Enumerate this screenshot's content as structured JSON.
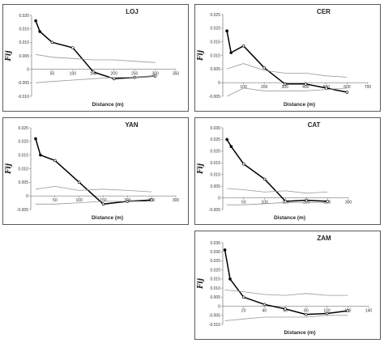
{
  "chart_data": [
    {
      "id": "loj",
      "type": "line",
      "title": "LOJ",
      "xlabel": "Distance (m)",
      "ylabel": "Fij",
      "xlim": [
        0,
        350
      ],
      "ylim": [
        -0.01,
        0.02
      ],
      "x_ticks": [
        50,
        100,
        150,
        200,
        250,
        300,
        350
      ],
      "y_ticks": [
        -0.01,
        -0.005,
        0,
        0.005,
        0.01,
        0.015,
        0.02
      ],
      "y_tick_labels": [
        "-0.010",
        "-0.005",
        "0",
        "0.005",
        "0.010",
        "0.015",
        "0.020"
      ],
      "grid": false,
      "legend": "none",
      "series": [
        {
          "role": "observed",
          "color": "#000000",
          "x": [
            10,
            20,
            50,
            100,
            150,
            200,
            250,
            300
          ],
          "y": [
            0.018,
            0.014,
            0.01,
            0.008,
            -0.001,
            -0.0035,
            -0.003,
            -0.0025
          ]
        },
        {
          "role": "upper",
          "color": "#999999",
          "x": [
            10,
            50,
            100,
            150,
            200,
            250,
            300
          ],
          "y": [
            0.0055,
            0.0045,
            0.004,
            0.0035,
            0.0035,
            0.003,
            0.0025
          ]
        },
        {
          "role": "lower",
          "color": "#999999",
          "x": [
            10,
            50,
            100,
            150,
            200,
            250,
            300
          ],
          "y": [
            -0.005,
            -0.0045,
            -0.004,
            -0.0035,
            -0.003,
            -0.003,
            -0.0025
          ]
        }
      ]
    },
    {
      "id": "cer",
      "type": "line",
      "title": "CER",
      "xlabel": "Distance (m)",
      "ylabel": "Fij",
      "xlim": [
        0,
        700
      ],
      "ylim": [
        -0.005,
        0.025
      ],
      "x_ticks": [
        100,
        200,
        300,
        400,
        500,
        600,
        700
      ],
      "y_ticks": [
        -0.005,
        0,
        0.005,
        0.01,
        0.015,
        0.02,
        0.025
      ],
      "y_tick_labels": [
        "-0.005",
        "0",
        "0.005",
        "0.010",
        "0.015",
        "0.020",
        "0.025"
      ],
      "grid": false,
      "legend": "none",
      "series": [
        {
          "role": "observed",
          "color": "#000000",
          "x": [
            20,
            40,
            100,
            200,
            300,
            400,
            500,
            600
          ],
          "y": [
            0.019,
            0.011,
            0.0135,
            0.0055,
            -0.0005,
            -0.0005,
            -0.002,
            -0.0035
          ]
        },
        {
          "role": "upper",
          "color": "#999999",
          "x": [
            20,
            100,
            200,
            300,
            400,
            500,
            600
          ],
          "y": [
            0.005,
            0.007,
            0.0045,
            0.0035,
            0.0035,
            0.0025,
            0.002
          ]
        },
        {
          "role": "lower",
          "color": "#999999",
          "x": [
            20,
            100,
            200,
            300,
            400,
            500,
            600
          ],
          "y": [
            -0.005,
            -0.002,
            -0.003,
            -0.003,
            -0.003,
            -0.0025,
            -0.002
          ]
        }
      ]
    },
    {
      "id": "yan",
      "type": "line",
      "title": "YAN",
      "xlabel": "Distance (m)",
      "ylabel": "Fij",
      "xlim": [
        0,
        300
      ],
      "ylim": [
        -0.005,
        0.025
      ],
      "x_ticks": [
        50,
        100,
        150,
        200,
        250,
        300
      ],
      "y_ticks": [
        -0.005,
        0,
        0.005,
        0.01,
        0.015,
        0.02,
        0.025
      ],
      "y_tick_labels": [
        "-0.005",
        "0",
        "0.005",
        "0.010",
        "0.015",
        "0.020",
        "0.025"
      ],
      "grid": false,
      "legend": "none",
      "series": [
        {
          "role": "observed",
          "color": "#000000",
          "x": [
            10,
            20,
            50,
            100,
            150,
            200,
            250
          ],
          "y": [
            0.021,
            0.015,
            0.013,
            0.005,
            -0.003,
            -0.002,
            -0.0015
          ]
        },
        {
          "role": "upper",
          "color": "#999999",
          "x": [
            10,
            50,
            100,
            150,
            200,
            250
          ],
          "y": [
            0.0025,
            0.0035,
            0.002,
            0.0025,
            0.002,
            0.0015
          ]
        },
        {
          "role": "lower",
          "color": "#999999",
          "x": [
            10,
            50,
            100,
            150,
            200,
            250
          ],
          "y": [
            -0.003,
            -0.003,
            -0.0025,
            -0.002,
            -0.002,
            -0.002
          ]
        }
      ]
    },
    {
      "id": "cat",
      "type": "line",
      "title": "CAT",
      "xlabel": "Distance (m)",
      "ylabel": "Fij",
      "xlim": [
        0,
        300
      ],
      "ylim": [
        -0.005,
        0.03
      ],
      "x_ticks": [
        50,
        100,
        150,
        200,
        250,
        300
      ],
      "y_ticks": [
        -0.005,
        0,
        0.005,
        0.01,
        0.015,
        0.02,
        0.025,
        0.03
      ],
      "y_tick_labels": [
        "-0.005",
        "0",
        "0.005",
        "0.010",
        "0.015",
        "0.020",
        "0.025",
        "0.030"
      ],
      "grid": false,
      "legend": "none",
      "series": [
        {
          "role": "observed",
          "color": "#000000",
          "x": [
            10,
            20,
            50,
            100,
            150,
            200,
            250
          ],
          "y": [
            0.025,
            0.022,
            0.0145,
            0.008,
            -0.0015,
            -0.001,
            -0.0015
          ]
        },
        {
          "role": "upper",
          "color": "#999999",
          "x": [
            10,
            50,
            100,
            150,
            200,
            250
          ],
          "y": [
            0.004,
            0.0035,
            0.0025,
            0.003,
            0.002,
            0.0025
          ]
        },
        {
          "role": "lower",
          "color": "#999999",
          "x": [
            10,
            50,
            100,
            150,
            200,
            250
          ],
          "y": [
            -0.003,
            -0.003,
            -0.0025,
            -0.002,
            -0.002,
            -0.002
          ]
        }
      ]
    },
    {
      "id": "zam",
      "type": "line",
      "title": "ZAM",
      "xlabel": "Distance (m)",
      "ylabel": "Fij",
      "xlim": [
        0,
        140
      ],
      "ylim": [
        -0.01,
        0.035
      ],
      "x_ticks": [
        20,
        40,
        60,
        80,
        100,
        120,
        140
      ],
      "y_ticks": [
        -0.01,
        -0.005,
        0,
        0.005,
        0.01,
        0.015,
        0.02,
        0.025,
        0.03,
        0.035
      ],
      "y_tick_labels": [
        "-0.010",
        "-0.005",
        "0",
        "0.005",
        "0.010",
        "0.015",
        "0.020",
        "0.025",
        "0.030",
        "0.035"
      ],
      "grid": false,
      "legend": "none",
      "series": [
        {
          "role": "observed",
          "color": "#000000",
          "x": [
            2,
            7,
            20,
            40,
            60,
            80,
            100,
            120
          ],
          "y": [
            0.031,
            0.015,
            0.005,
            0.001,
            -0.0015,
            -0.0045,
            -0.004,
            -0.0025
          ]
        },
        {
          "role": "upper",
          "color": "#999999",
          "x": [
            2,
            20,
            40,
            60,
            80,
            100,
            120
          ],
          "y": [
            0.009,
            0.008,
            0.0065,
            0.006,
            0.007,
            0.006,
            0.006
          ]
        },
        {
          "role": "lower",
          "color": "#999999",
          "x": [
            2,
            20,
            40,
            60,
            80,
            100,
            120
          ],
          "y": [
            -0.008,
            -0.007,
            -0.006,
            -0.006,
            -0.006,
            -0.005,
            -0.005
          ]
        }
      ]
    }
  ]
}
